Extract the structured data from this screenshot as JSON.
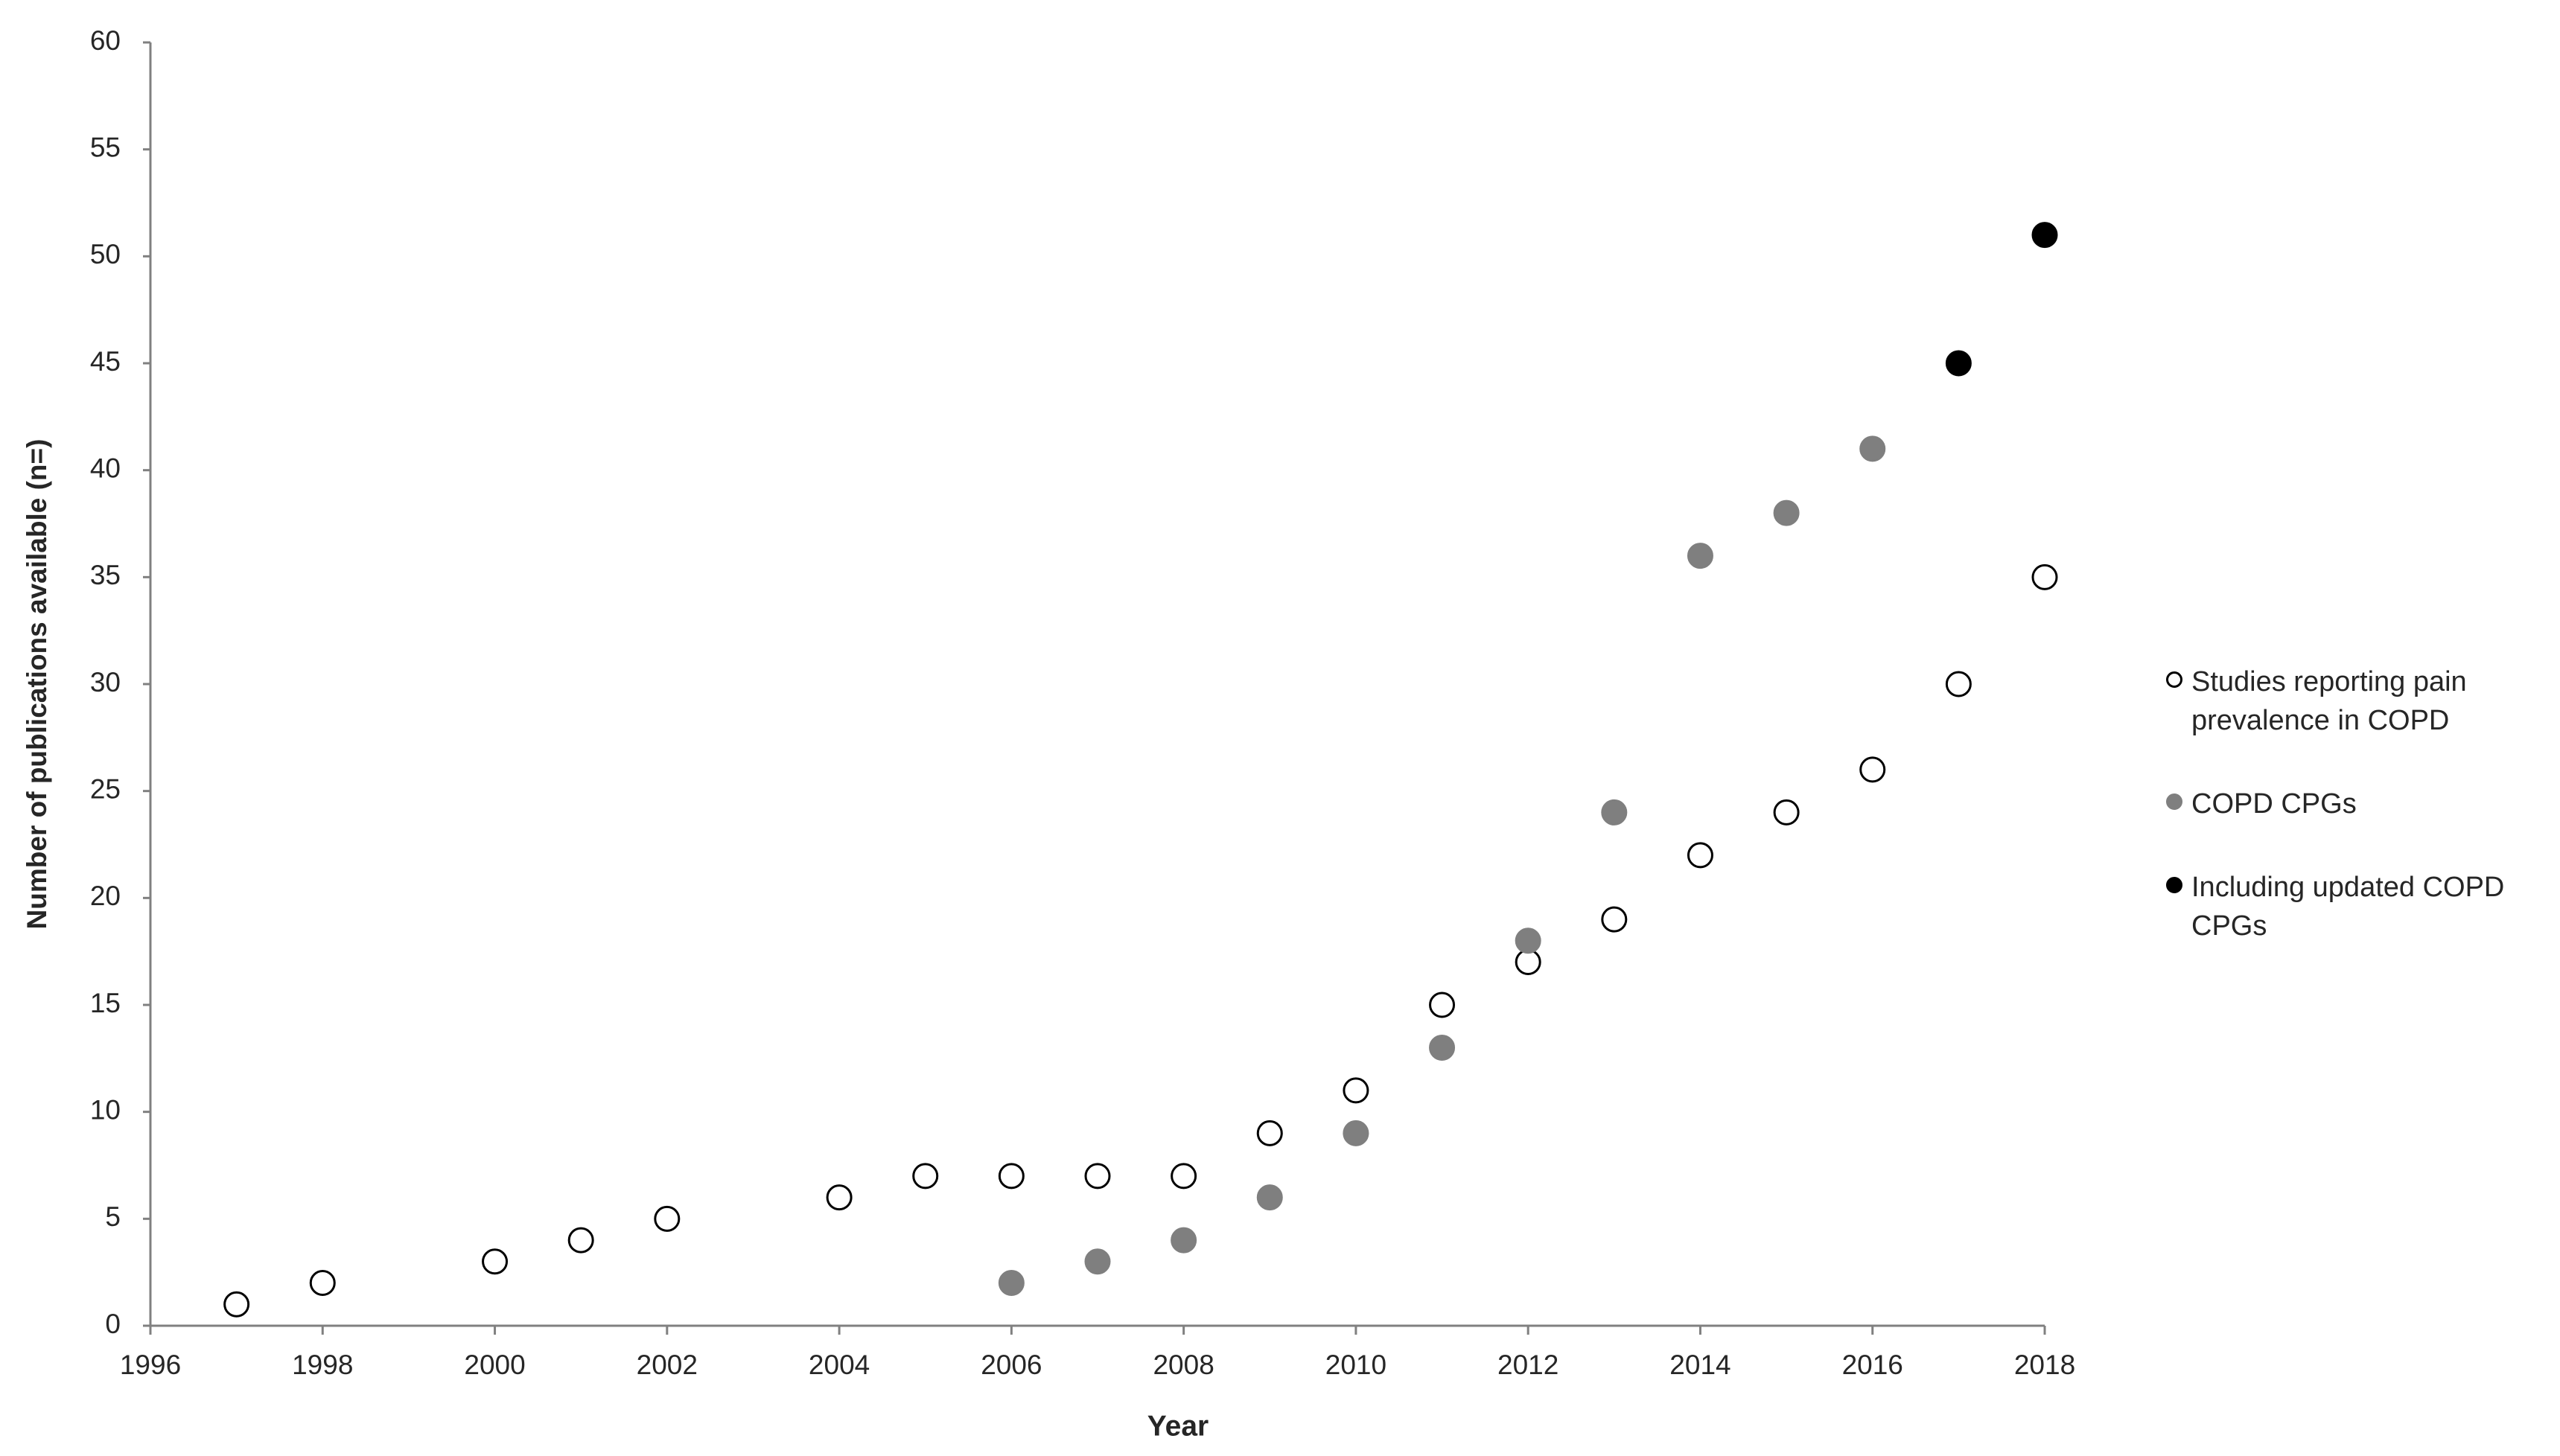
{
  "chart_data": {
    "type": "scatter",
    "x_label": "Year",
    "y_label": "Number of publications available (n=)",
    "xlim": [
      1996,
      2018
    ],
    "xticks": [
      1996,
      1998,
      2000,
      2002,
      2004,
      2006,
      2008,
      2010,
      2012,
      2014,
      2016,
      2018
    ],
    "ylim": [
      0,
      60
    ],
    "yticks": [
      0,
      5,
      10,
      15,
      20,
      25,
      30,
      35,
      40,
      45,
      50,
      55,
      60
    ],
    "grid": false,
    "legend": "right",
    "series": [
      {
        "name": "Studies reporting pain prevalence in COPD",
        "color": "#ffffff",
        "edgecolor": "#000000",
        "x": [
          1997,
          1998,
          2000,
          2001,
          2002,
          2004,
          2005,
          2006,
          2007,
          2008,
          2009,
          2010,
          2011,
          2012,
          2013,
          2014,
          2015,
          2016,
          2017,
          2018
        ],
        "values": [
          1,
          2,
          3,
          4,
          5,
          6,
          7,
          7,
          7,
          7,
          9,
          11,
          15,
          17,
          19,
          22,
          24,
          26,
          30,
          35
        ]
      },
      {
        "name": "COPD CPGs",
        "color": "#7f7f7f",
        "edgecolor": "#7f7f7f",
        "x": [
          2006,
          2007,
          2008,
          2009,
          2010,
          2011,
          2012,
          2013,
          2014,
          2015,
          2016
        ],
        "values": [
          2,
          3,
          4,
          6,
          9,
          13,
          18,
          24,
          36,
          38,
          41
        ]
      },
      {
        "name": "Including updated COPD CPGs",
        "color": "#000000",
        "edgecolor": "#000000",
        "x": [
          2017,
          2018
        ],
        "values": [
          45,
          51
        ]
      }
    ]
  }
}
